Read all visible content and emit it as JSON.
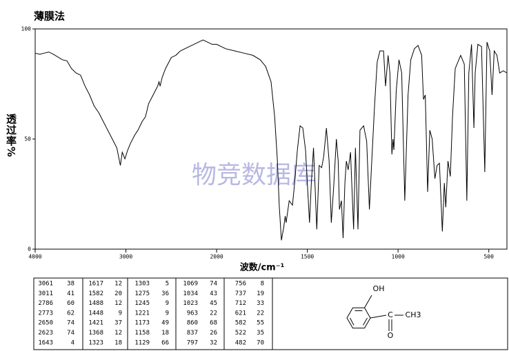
{
  "chart_data": {
    "type": "line",
    "title": "薄膜法",
    "x_label": "波数/cm⁻¹",
    "y_label": "透过率%",
    "watermark": "物竞数据库",
    "color": "#000000",
    "grid": false,
    "xlim": [
      4000,
      400
    ],
    "xticks": [
      4000,
      3000,
      2000,
      1500,
      1000,
      500
    ],
    "ylim": [
      0,
      100
    ],
    "yticks": [
      0,
      50,
      100
    ],
    "x": [
      4000,
      3950,
      3900,
      3850,
      3800,
      3700,
      3650,
      3600,
      3550,
      3500,
      3450,
      3400,
      3350,
      3300,
      3250,
      3200,
      3150,
      3100,
      3061,
      3040,
      3011,
      2980,
      2950,
      2900,
      2867,
      2820,
      2786,
      2773,
      2750,
      2700,
      2650,
      2635,
      2623,
      2600,
      2563,
      2500,
      2450,
      2400,
      2300,
      2250,
      2200,
      2150,
      2100,
      2050,
      2000,
      1950,
      1900,
      1850,
      1800,
      1760,
      1730,
      1700,
      1680,
      1665,
      1655,
      1643,
      1630,
      1622,
      1617,
      1600,
      1582,
      1570,
      1555,
      1540,
      1525,
      1510,
      1488,
      1478,
      1466,
      1448,
      1435,
      1421,
      1410,
      1395,
      1380,
      1368,
      1355,
      1340,
      1330,
      1323,
      1312,
      1303,
      1293,
      1285,
      1275,
      1262,
      1245,
      1235,
      1221,
      1210,
      1190,
      1173,
      1158,
      1145,
      1129,
      1115,
      1100,
      1080,
      1069,
      1055,
      1045,
      1034,
      1028,
      1023,
      1010,
      995,
      980,
      963,
      945,
      930,
      910,
      890,
      870,
      860,
      850,
      837,
      825,
      812,
      797,
      785,
      772,
      756,
      745,
      737,
      725,
      712,
      700,
      685,
      655,
      635,
      621,
      610,
      595,
      582,
      575,
      560,
      540,
      522,
      510,
      495,
      482,
      470,
      455,
      440,
      420,
      400
    ],
    "values": [
      89,
      88.5,
      89,
      89.5,
      88.5,
      86,
      85.5,
      82,
      80,
      79,
      74,
      70,
      65,
      62,
      58,
      54,
      50,
      46,
      38,
      44,
      41,
      45,
      48,
      52,
      54,
      58,
      60,
      62,
      66,
      70,
      74,
      76,
      74,
      78,
      82,
      87,
      88,
      90,
      92,
      93,
      94,
      95,
      94,
      93,
      93,
      91,
      90,
      89,
      88,
      86,
      83,
      76,
      60,
      40,
      20,
      4,
      10,
      15,
      12,
      22,
      20,
      30,
      45,
      56,
      55,
      45,
      12,
      30,
      46,
      9,
      38,
      37,
      42,
      55,
      40,
      12,
      28,
      50,
      40,
      18,
      22,
      5,
      30,
      40,
      36,
      44,
      9,
      46,
      9,
      54,
      56,
      49,
      18,
      40,
      66,
      85,
      90,
      90,
      74,
      88,
      80,
      43,
      50,
      45,
      72,
      86,
      80,
      22,
      70,
      86,
      91,
      92.5,
      88,
      68,
      70,
      26,
      54,
      50,
      32,
      38,
      39,
      8,
      30,
      19,
      40,
      33,
      60,
      82,
      88,
      84,
      22,
      80,
      93,
      55,
      80,
      93,
      92,
      35,
      94,
      90,
      70,
      90,
      88,
      80,
      81,
      80
    ]
  },
  "peak_table": {
    "columns": [
      [
        [
          3061,
          38
        ],
        [
          3011,
          41
        ],
        [
          2786,
          60
        ],
        [
          2773,
          62
        ],
        [
          2650,
          74
        ],
        [
          2623,
          74
        ],
        [
          1643,
          4
        ]
      ],
      [
        [
          1617,
          12
        ],
        [
          1582,
          20
        ],
        [
          1488,
          12
        ],
        [
          1448,
          9
        ],
        [
          1421,
          37
        ],
        [
          1368,
          12
        ],
        [
          1323,
          18
        ]
      ],
      [
        [
          1303,
          5
        ],
        [
          1275,
          36
        ],
        [
          1245,
          9
        ],
        [
          1221,
          9
        ],
        [
          1173,
          49
        ],
        [
          1158,
          18
        ],
        [
          1129,
          66
        ]
      ],
      [
        [
          1069,
          74
        ],
        [
          1034,
          43
        ],
        [
          1023,
          45
        ],
        [
          963,
          22
        ],
        [
          860,
          68
        ],
        [
          837,
          26
        ],
        [
          797,
          32
        ]
      ],
      [
        [
          756,
          8
        ],
        [
          737,
          19
        ],
        [
          712,
          33
        ],
        [
          621,
          22
        ],
        [
          582,
          55
        ],
        [
          522,
          35
        ],
        [
          482,
          70
        ]
      ]
    ]
  },
  "structure": {
    "labels": [
      "OH",
      "C",
      "CH3",
      "O"
    ]
  }
}
